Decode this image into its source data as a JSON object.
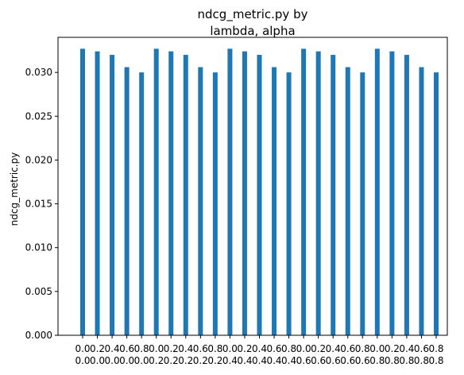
{
  "chart_data": {
    "type": "bar",
    "title_lines": [
      "ndcg_metric.py by",
      "lambda, alpha"
    ],
    "xlabel": "",
    "ylabel": "ndcg_metric.py",
    "ylim": [
      0,
      0.034
    ],
    "yticks": [
      "0.000",
      "0.005",
      "0.010",
      "0.015",
      "0.020",
      "0.025",
      "0.030"
    ],
    "ytick_values": [
      0,
      0.005,
      0.01,
      0.015,
      0.02,
      0.025,
      0.03
    ],
    "categories": [
      [
        "0.0",
        "0.0"
      ],
      [
        "0.2",
        "0.0"
      ],
      [
        "0.4",
        "0.0"
      ],
      [
        "0.6",
        "0.0"
      ],
      [
        "0.8",
        "0.0"
      ],
      [
        "0.0",
        "0.2"
      ],
      [
        "0.2",
        "0.2"
      ],
      [
        "0.4",
        "0.2"
      ],
      [
        "0.6",
        "0.2"
      ],
      [
        "0.8",
        "0.2"
      ],
      [
        "0.0",
        "0.4"
      ],
      [
        "0.2",
        "0.4"
      ],
      [
        "0.4",
        "0.4"
      ],
      [
        "0.6",
        "0.4"
      ],
      [
        "0.8",
        "0.4"
      ],
      [
        "0.0",
        "0.6"
      ],
      [
        "0.2",
        "0.6"
      ],
      [
        "0.4",
        "0.6"
      ],
      [
        "0.6",
        "0.6"
      ],
      [
        "0.8",
        "0.6"
      ],
      [
        "0.0",
        "0.8"
      ],
      [
        "0.2",
        "0.8"
      ],
      [
        "0.4",
        "0.8"
      ],
      [
        "0.6",
        "0.8"
      ],
      [
        "0.8",
        "0.8"
      ]
    ],
    "values": [
      0.0327,
      0.0324,
      0.032,
      0.0306,
      0.03,
      0.0327,
      0.0324,
      0.032,
      0.0306,
      0.03,
      0.0327,
      0.0324,
      0.032,
      0.0306,
      0.03,
      0.0327,
      0.0324,
      0.032,
      0.0306,
      0.03,
      0.0327,
      0.0324,
      0.032,
      0.0306,
      0.03
    ],
    "grid": false,
    "bar_color": "#1f77b4"
  }
}
